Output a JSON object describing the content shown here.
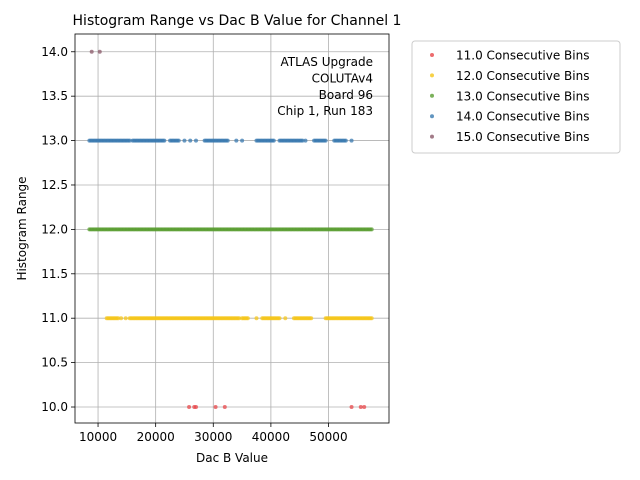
{
  "chart_data": {
    "type": "scatter",
    "title": "Histogram Range vs Dac B Value for Channel 1",
    "xlabel": "Dac B Value",
    "ylabel": "Histogram Range",
    "xlim": [
      6000,
      60500
    ],
    "ylim": [
      9.82,
      14.2
    ],
    "x_ticks": [
      10000,
      20000,
      30000,
      40000,
      50000
    ],
    "y_ticks": [
      10.0,
      10.5,
      11.0,
      11.5,
      12.0,
      12.5,
      13.0,
      13.5,
      14.0
    ],
    "grid": true,
    "legend_position": "outside-top-right",
    "annotation": [
      "ATLAS Upgrade",
      "COLUTAv4",
      "Board 96",
      "Chip 1, Run 183"
    ],
    "series": [
      {
        "name": "11.0 Consecutive Bins",
        "color": "#e8474a",
        "y": 10.0,
        "x": [
          25800,
          26700,
          27000,
          30400,
          32000,
          54000,
          55600,
          56200
        ]
      },
      {
        "name": "12.0 Consecutive Bins",
        "color": "#f5c518",
        "y": 11.0,
        "x_ranges": [
          [
            11500,
            13500
          ],
          [
            15500,
            34500
          ],
          [
            35000,
            36000
          ],
          [
            38500,
            41500
          ],
          [
            44000,
            47000
          ],
          [
            49500,
            57500
          ]
        ],
        "x": [
          14000,
          14800,
          37500,
          42500
        ]
      },
      {
        "name": "13.0 Consecutive Bins",
        "color": "#5a9e32",
        "y": 12.0,
        "x_ranges": [
          [
            8500,
            57500
          ]
        ],
        "x": []
      },
      {
        "name": "14.0 Consecutive Bins",
        "color": "#3a7ab0",
        "y": 13.0,
        "x_ranges": [
          [
            8500,
            15500
          ],
          [
            16000,
            21500
          ],
          [
            22500,
            24000
          ],
          [
            28500,
            32500
          ],
          [
            37500,
            40500
          ],
          [
            41500,
            45500
          ],
          [
            47500,
            49500
          ],
          [
            51000,
            53000
          ]
        ],
        "x": [
          25000,
          26000,
          27000,
          34000,
          35000,
          46000,
          54000
        ]
      },
      {
        "name": "15.0 Consecutive Bins",
        "color": "#8b5a6a",
        "y": 14.0,
        "x": [
          8900,
          10300
        ]
      }
    ]
  }
}
